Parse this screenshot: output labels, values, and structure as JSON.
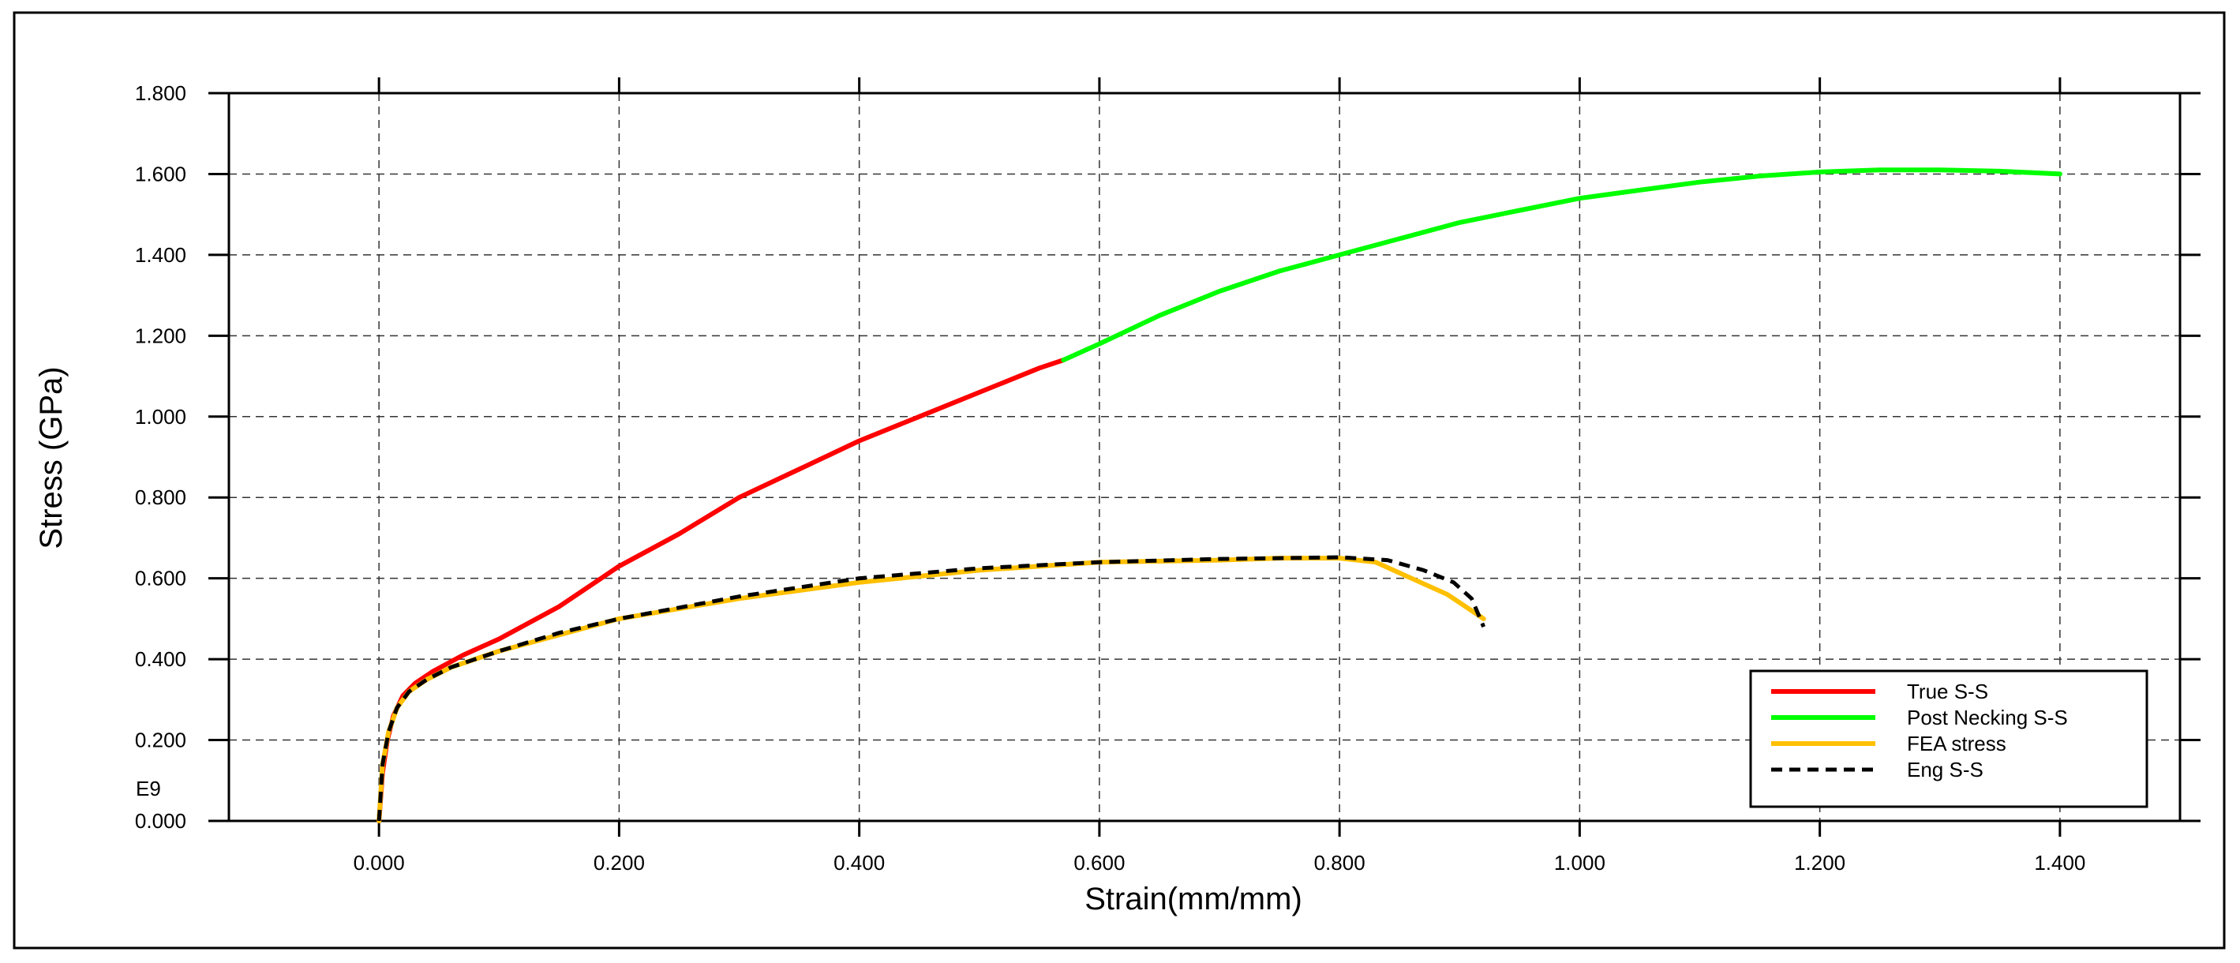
{
  "chart_data": {
    "type": "line",
    "title": "",
    "xlabel": "Strain(mm/mm)",
    "ylabel": "Stress (GPa)",
    "y_multiplier_label": "E9",
    "xlim": [
      -0.125,
      1.5
    ],
    "ylim": [
      0,
      1.8
    ],
    "x_ticks": [
      0.0,
      0.2,
      0.4,
      0.6,
      0.8,
      1.0,
      1.2,
      1.4
    ],
    "x_tick_labels": [
      "0.000",
      "0.200",
      "0.400",
      "0.600",
      "0.800",
      "1.000",
      "1.200",
      "1.400"
    ],
    "y_ticks": [
      0.0,
      0.2,
      0.4,
      0.6,
      0.8,
      1.0,
      1.2,
      1.4,
      1.6,
      1.8
    ],
    "y_tick_labels": [
      "0.000",
      "0.200",
      "0.400",
      "0.600",
      "0.800",
      "1.000",
      "1.200",
      "1.400",
      "1.600",
      "1.800"
    ],
    "grid": true,
    "legend_position": "bottom-right",
    "series": [
      {
        "name": "True S-S",
        "color": "#ff0000",
        "style": "solid",
        "points": [
          [
            0.0,
            0.0
          ],
          [
            0.003,
            0.12
          ],
          [
            0.007,
            0.2
          ],
          [
            0.012,
            0.26
          ],
          [
            0.02,
            0.31
          ],
          [
            0.03,
            0.34
          ],
          [
            0.045,
            0.37
          ],
          [
            0.07,
            0.41
          ],
          [
            0.1,
            0.45
          ],
          [
            0.15,
            0.53
          ],
          [
            0.2,
            0.63
          ],
          [
            0.25,
            0.71
          ],
          [
            0.3,
            0.8
          ],
          [
            0.35,
            0.87
          ],
          [
            0.4,
            0.94
          ],
          [
            0.45,
            1.0
          ],
          [
            0.5,
            1.06
          ],
          [
            0.55,
            1.12
          ],
          [
            0.57,
            1.14
          ]
        ]
      },
      {
        "name": "Post Necking S-S",
        "color": "#00ff00",
        "style": "solid",
        "points": [
          [
            0.57,
            1.14
          ],
          [
            0.6,
            1.18
          ],
          [
            0.65,
            1.25
          ],
          [
            0.7,
            1.31
          ],
          [
            0.75,
            1.36
          ],
          [
            0.8,
            1.4
          ],
          [
            0.85,
            1.44
          ],
          [
            0.9,
            1.48
          ],
          [
            0.95,
            1.51
          ],
          [
            1.0,
            1.54
          ],
          [
            1.05,
            1.56
          ],
          [
            1.1,
            1.58
          ],
          [
            1.15,
            1.595
          ],
          [
            1.2,
            1.605
          ],
          [
            1.25,
            1.61
          ],
          [
            1.3,
            1.61
          ],
          [
            1.35,
            1.607
          ],
          [
            1.4,
            1.6
          ]
        ]
      },
      {
        "name": "FEA stress",
        "color": "#ffc000",
        "style": "solid",
        "points": [
          [
            0.0,
            0.0
          ],
          [
            0.003,
            0.14
          ],
          [
            0.008,
            0.22
          ],
          [
            0.015,
            0.28
          ],
          [
            0.025,
            0.32
          ],
          [
            0.04,
            0.35
          ],
          [
            0.06,
            0.38
          ],
          [
            0.1,
            0.42
          ],
          [
            0.15,
            0.46
          ],
          [
            0.2,
            0.5
          ],
          [
            0.3,
            0.55
          ],
          [
            0.4,
            0.59
          ],
          [
            0.5,
            0.62
          ],
          [
            0.6,
            0.64
          ],
          [
            0.7,
            0.645
          ],
          [
            0.75,
            0.65
          ],
          [
            0.8,
            0.65
          ],
          [
            0.83,
            0.64
          ],
          [
            0.86,
            0.6
          ],
          [
            0.89,
            0.56
          ],
          [
            0.91,
            0.52
          ],
          [
            0.92,
            0.5
          ]
        ]
      },
      {
        "name": "Eng S-S",
        "color": "#000000",
        "style": "dashed",
        "points": [
          [
            0.0,
            0.0
          ],
          [
            0.003,
            0.14
          ],
          [
            0.008,
            0.22
          ],
          [
            0.015,
            0.28
          ],
          [
            0.025,
            0.32
          ],
          [
            0.04,
            0.35
          ],
          [
            0.06,
            0.38
          ],
          [
            0.1,
            0.42
          ],
          [
            0.15,
            0.465
          ],
          [
            0.2,
            0.5
          ],
          [
            0.3,
            0.555
          ],
          [
            0.4,
            0.6
          ],
          [
            0.5,
            0.625
          ],
          [
            0.6,
            0.64
          ],
          [
            0.7,
            0.648
          ],
          [
            0.75,
            0.65
          ],
          [
            0.8,
            0.652
          ],
          [
            0.84,
            0.645
          ],
          [
            0.87,
            0.62
          ],
          [
            0.895,
            0.59
          ],
          [
            0.91,
            0.55
          ],
          [
            0.92,
            0.48
          ]
        ]
      }
    ]
  }
}
